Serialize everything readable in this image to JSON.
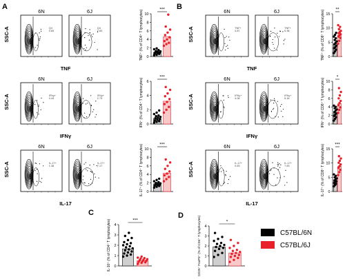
{
  "panels": {
    "A": {
      "letter": "A",
      "rows": [
        {
          "ylabel": "SSC-A",
          "xlabel": "TNF",
          "plot_titles": [
            "6N",
            "6J"
          ],
          "gate_labels": [
            [
              "Q4",
              "0.65"
            ],
            [
              "Q4",
              "2.83"
            ]
          ],
          "bar_ylabel": "TNF⁺ (% of CD4⁺ T lymphocytes)",
          "sig": "***"
        },
        {
          "ylabel": "SSC-A",
          "xlabel": "IFNγ",
          "plot_titles": [
            "6N",
            "6J"
          ],
          "gate_labels": [
            [
              "IFNγ+",
              "0.44"
            ],
            [
              "IFNγ+",
              "2.73"
            ]
          ],
          "bar_ylabel": "IFN⁺ (% of CD4⁺ T lymphocytes)",
          "sig": "***"
        },
        {
          "ylabel": "SSC-A",
          "xlabel": "IL-17",
          "plot_titles": [
            "6N",
            "6J"
          ],
          "gate_labels": [
            [
              "IL-17+",
              "1.38"
            ],
            [
              "IL-17+",
              "7.17"
            ]
          ],
          "bar_ylabel": "IL-17⁺ (% of CD4⁺ T lymphocytes)",
          "sig": "***"
        }
      ]
    },
    "B": {
      "letter": "B",
      "rows": [
        {
          "ylabel": "SSC-A",
          "xlabel": "TNF",
          "plot_titles": [
            "6N",
            "6J"
          ],
          "gate_labels": [
            [
              "TNF+",
              "4.87"
            ],
            [
              "TNF+",
              "6.38"
            ]
          ],
          "bar_ylabel": "TNF⁺ (% of CD8⁺ T lymphocytes)",
          "sig": "**"
        },
        {
          "ylabel": "SSC-A",
          "xlabel": "IFNγ",
          "plot_titles": [
            "6N",
            "6J"
          ],
          "gate_labels": [
            [
              "IFNγ+",
              "3.08"
            ],
            [
              "IFNγ+",
              "5.18"
            ]
          ],
          "bar_ylabel": "IFN⁺ (% of CD8⁺ T lymphocytes)",
          "sig": "*"
        },
        {
          "ylabel": "SSC-A",
          "xlabel": "IL-17",
          "plot_titles": [
            "6N",
            "6J"
          ],
          "gate_labels": [
            [
              "IL-17+",
              "0.83"
            ],
            [
              "IL-17+",
              "7.83"
            ]
          ],
          "bar_ylabel": "IL-17⁺ (% of CD8⁺ T lymphocytes)",
          "sig": "***"
        }
      ]
    },
    "C": {
      "letter": "C",
      "bar_ylabel": "IL-10⁺ (% of CD4⁺ T lymphocytes)",
      "sig": "***"
    },
    "D": {
      "letter": "D",
      "bar_ylabel": "CD25⁺ FoxP3⁺ (% of CD4⁺ T lymphocytes)",
      "sig": "*"
    }
  },
  "legend": [
    {
      "label": "C57BL/6N",
      "color": "#000000"
    },
    {
      "label": "C57BL/6J",
      "color": "#e8202a"
    }
  ],
  "colors": {
    "six_n": "#000000",
    "six_j": "#e8202a",
    "bar_n": "#cfcfcf",
    "bar_j": "#f7c9c9"
  },
  "chart_data": [
    {
      "id": "A1",
      "type": "bar",
      "categories": [
        "C57BL/6N",
        "C57BL/6J"
      ],
      "ylim": [
        0,
        10
      ],
      "yticks": [
        0,
        2,
        4,
        6,
        8,
        10
      ],
      "values": [
        1.0,
        4.6
      ],
      "points": [
        [
          0.3,
          0.4,
          0.6,
          0.7,
          0.8,
          0.9,
          1.0,
          1.1,
          1.2,
          1.3,
          1.5,
          1.7,
          1.9
        ],
        [
          2.5,
          2.9,
          3.2,
          3.6,
          4.0,
          4.5,
          5.0,
          5.6,
          6.3,
          7.0,
          9.8
        ]
      ]
    },
    {
      "id": "A2",
      "type": "bar",
      "categories": [
        "C57BL/6N",
        "C57BL/6J"
      ],
      "ylim": [
        0,
        6
      ],
      "yticks": [
        0,
        2,
        4,
        6
      ],
      "values": [
        0.8,
        3.2
      ],
      "points": [
        [
          0.2,
          0.3,
          0.4,
          0.5,
          0.6,
          0.7,
          0.8,
          0.9,
          1.0,
          1.1,
          1.2,
          1.4,
          1.6,
          1.9
        ],
        [
          1.6,
          2.0,
          2.4,
          2.8,
          3.1,
          3.5,
          3.9,
          4.3,
          4.8,
          5.2
        ]
      ]
    },
    {
      "id": "A3",
      "type": "bar",
      "categories": [
        "C57BL/6N",
        "C57BL/6J"
      ],
      "ylim": [
        0,
        10
      ],
      "yticks": [
        0,
        2,
        4,
        6,
        8,
        10
      ],
      "values": [
        1.8,
        4.3
      ],
      "points": [
        [
          0.9,
          1.1,
          1.3,
          1.4,
          1.5,
          1.6,
          1.7,
          1.8,
          1.9,
          2.0,
          2.2,
          2.4,
          2.7,
          3.0
        ],
        [
          2.4,
          2.9,
          3.4,
          3.8,
          4.2,
          4.7,
          5.3,
          6.0,
          6.8,
          7.5
        ]
      ]
    },
    {
      "id": "B1",
      "type": "bar",
      "categories": [
        "C57BL/6N",
        "C57BL/6J"
      ],
      "ylim": [
        0,
        15
      ],
      "yticks": [
        0,
        5,
        10,
        15
      ],
      "values": [
        4.5,
        7.6
      ],
      "points": [
        [
          1.2,
          1.8,
          2.4,
          2.9,
          3.3,
          3.8,
          4.3,
          4.8,
          5.3,
          5.8,
          6.4,
          7.0,
          7.6,
          8.3
        ],
        [
          4.5,
          5.5,
          6.5,
          7.0,
          7.4,
          7.8,
          8.2,
          8.6,
          9.0,
          9.6,
          10.4,
          11.0
        ]
      ]
    },
    {
      "id": "B2",
      "type": "bar",
      "categories": [
        "C57BL/6N",
        "C57BL/6J"
      ],
      "ylim": [
        0,
        10
      ],
      "yticks": [
        0,
        2,
        4,
        6,
        8,
        10
      ],
      "values": [
        2.6,
        4.8
      ],
      "points": [
        [
          0.8,
          1.2,
          1.6,
          1.9,
          2.2,
          2.5,
          2.8,
          3.1,
          3.4,
          3.7,
          4.0,
          4.3
        ],
        [
          2.6,
          3.3,
          3.9,
          4.4,
          4.9,
          5.4,
          6.0,
          6.7,
          7.5,
          8.4
        ]
      ]
    },
    {
      "id": "B3",
      "type": "bar",
      "categories": [
        "C57BL/6N",
        "C57BL/6J"
      ],
      "ylim": [
        0,
        15
      ],
      "yticks": [
        0,
        5,
        10,
        15
      ],
      "values": [
        3.6,
        8.9
      ],
      "points": [
        [
          1.8,
          2.3,
          2.7,
          3.0,
          3.3,
          3.6,
          3.9,
          4.2,
          4.6,
          5.0,
          5.5,
          6.0
        ],
        [
          5.8,
          6.8,
          7.6,
          8.3,
          8.9,
          9.5,
          10.1,
          10.8,
          11.6,
          12.4
        ]
      ]
    },
    {
      "id": "C",
      "type": "bar",
      "categories": [
        "C57BL/6N",
        "C57BL/6J"
      ],
      "ylim": [
        0,
        4
      ],
      "yticks": [
        0,
        1,
        2,
        3,
        4
      ],
      "values": [
        1.65,
        0.5
      ],
      "points": [
        [
          0.9,
          1.0,
          1.1,
          1.2,
          1.3,
          1.4,
          1.5,
          1.6,
          1.7,
          1.8,
          1.9,
          2.0,
          2.1,
          2.2,
          2.3,
          2.5,
          2.7,
          2.9,
          3.2
        ],
        [
          0.2,
          0.3,
          0.35,
          0.4,
          0.45,
          0.5,
          0.55,
          0.6,
          0.65,
          0.7,
          0.75,
          0.8,
          0.9
        ]
      ]
    },
    {
      "id": "D",
      "type": "bar",
      "categories": [
        "C57BL/6N",
        "C57BL/6J"
      ],
      "ylim": [
        0,
        4
      ],
      "yticks": [
        0,
        1,
        2,
        3,
        4
      ],
      "values": [
        1.9,
        1.3
      ],
      "points": [
        [
          0.9,
          1.1,
          1.3,
          1.5,
          1.7,
          1.8,
          1.9,
          2.0,
          2.1,
          2.2,
          2.3,
          2.5,
          2.7,
          2.9,
          3.3
        ],
        [
          0.4,
          0.6,
          0.8,
          0.9,
          1.0,
          1.1,
          1.2,
          1.3,
          1.4,
          1.5,
          1.6,
          1.8,
          2.0,
          2.3,
          2.6
        ]
      ]
    }
  ]
}
